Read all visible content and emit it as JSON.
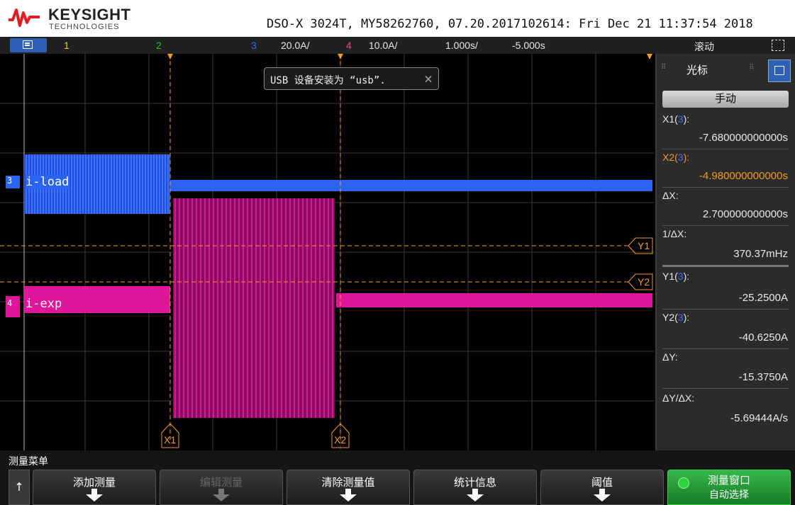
{
  "header": {
    "brand": "KEYSIGHT",
    "brand_sub": "TECHNOLOGIES",
    "model_info": "DSO-X 3024T, MY58262760, 07.20.2017102614: Fri Dec 21 11:37:54 2018"
  },
  "channel_bar": {
    "ch1": "1",
    "ch2": "2",
    "ch3": "3",
    "ch3_scale": "20.0A/",
    "ch4": "4",
    "ch4_scale": "10.0A/",
    "timebase": "1.000s/",
    "delay": "-5.000s",
    "trigger_mode": "滚动"
  },
  "notice": {
    "text": "USB 设备安装为 “usb”.",
    "close": "×"
  },
  "waveforms": {
    "ch3_label": "i-load",
    "ch4_label": "i-exp",
    "ch3_marker": "3",
    "ch4_marker": "4",
    "ch3_color": "#2b63f2",
    "ch4_color": "#e0169a"
  },
  "cursors": {
    "x1": "X1",
    "x2": "X2",
    "y1": "Y1",
    "y2": "Y2",
    "color": "#f59b21"
  },
  "cursor_panel": {
    "title": "光标",
    "mode": "手动",
    "rows": [
      {
        "label": "X1(",
        "src": "3",
        "end": "):",
        "value": "-7.680000000000s",
        "orange": false
      },
      {
        "label": "X2(",
        "src": "3",
        "end": "):",
        "value": "-4.980000000000s",
        "orange": true
      },
      {
        "label": "ΔX:",
        "src": "",
        "end": "",
        "value": "2.700000000000s",
        "orange": false
      },
      {
        "label": "1/ΔX:",
        "src": "",
        "end": "",
        "value": "370.37mHz",
        "orange": false
      },
      {
        "label": "Y1(",
        "src": "3",
        "end": "):",
        "value": "-25.2500A",
        "orange": false
      },
      {
        "label": "Y2(",
        "src": "3",
        "end": "):",
        "value": "-40.6250A",
        "orange": false
      },
      {
        "label": "ΔY:",
        "src": "",
        "end": "",
        "value": "-15.3750A",
        "orange": false
      },
      {
        "label": "ΔY/ΔX:",
        "src": "",
        "end": "",
        "value": "-5.69444A/s",
        "orange": false
      }
    ]
  },
  "softkeys": {
    "menu_title": "测量菜单",
    "up": "↑",
    "b1": "添加测量",
    "b2": "编辑测量",
    "b3": "清除测量值",
    "b4": "统计信息",
    "b5": "阈值",
    "b6_line1": "测量窗口",
    "b6_line2": "自动选择"
  }
}
